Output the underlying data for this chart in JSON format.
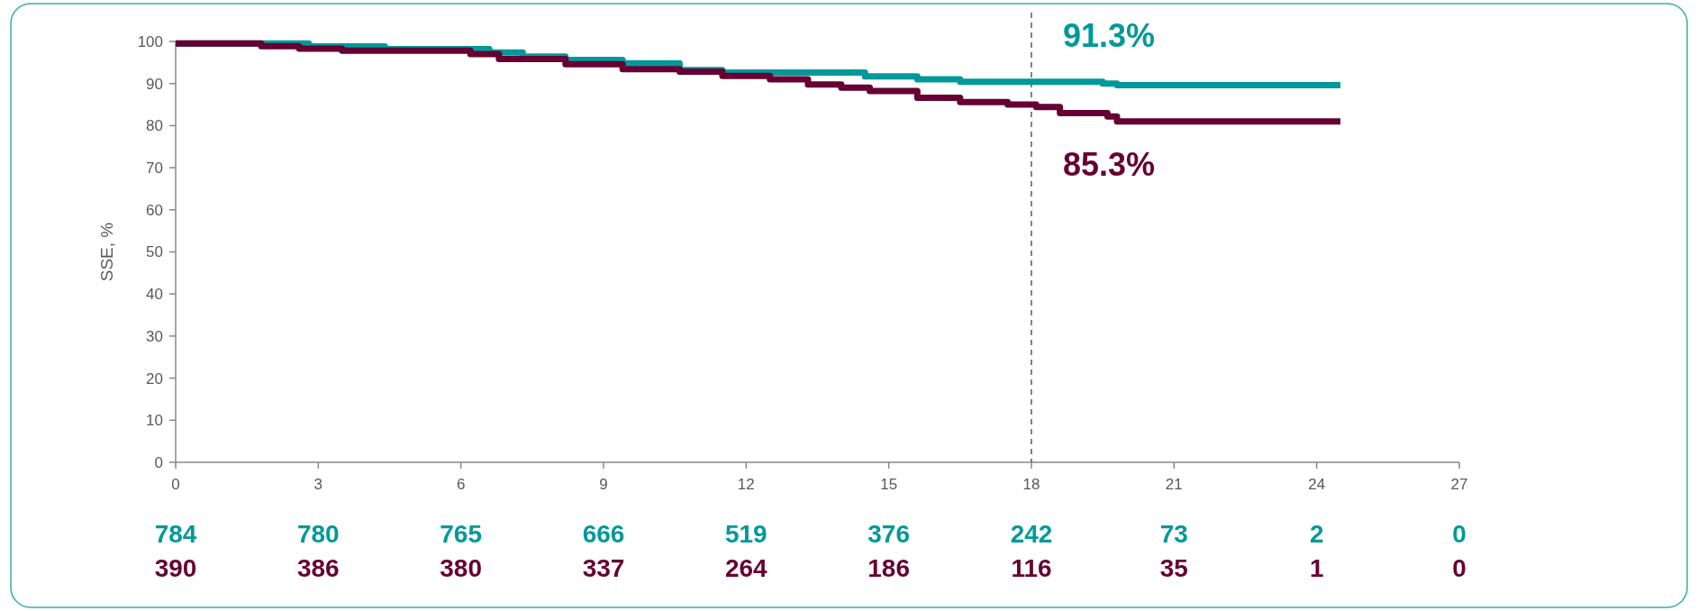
{
  "chart_data": {
    "type": "step",
    "ylabel": "SSE, %",
    "xlim": [
      0,
      27
    ],
    "xticks": [
      0,
      3,
      6,
      9,
      12,
      15,
      18,
      21,
      24,
      27
    ],
    "ylim": [
      0,
      100
    ],
    "yticks": [
      0,
      10,
      20,
      30,
      40,
      50,
      60,
      70,
      80,
      90,
      100
    ],
    "line_style": "solid",
    "series": [
      {
        "color": "#009999",
        "x": [
          0,
          2.8,
          4.4,
          6.6,
          7.3,
          8.2,
          9.4,
          10.6,
          11.5,
          14.5,
          15.6,
          16.5,
          19.5,
          19.8,
          24.5
        ],
        "values": [
          99.5,
          98.8,
          98.2,
          97.4,
          96.4,
          95.6,
          94.8,
          93.2,
          92.6,
          91.7,
          91.0,
          90.4,
          90.0,
          89.6,
          89.6
        ]
      },
      {
        "color": "#660033",
        "x": [
          0,
          1.8,
          2.6,
          3.5,
          6.2,
          6.8,
          8.2,
          9.4,
          10.6,
          11.5,
          12.5,
          13.3,
          14.0,
          14.6,
          15.6,
          16.5,
          17.5,
          18.1,
          18.6,
          19.6,
          19.8,
          24.5
        ],
        "values": [
          99.5,
          98.9,
          98.3,
          97.8,
          97.0,
          95.8,
          94.6,
          93.4,
          92.8,
          91.8,
          91.0,
          89.8,
          89.0,
          88.2,
          86.6,
          85.6,
          85.0,
          84.4,
          83.0,
          82.2,
          81.0,
          81.0
        ]
      }
    ],
    "ref_lines": [
      {
        "axis": "x",
        "value": 18,
        "color": "#595959",
        "line_style": "dashed"
      }
    ],
    "annotations": [
      {
        "text": "91.3%",
        "x": 18,
        "y": 91.3
      },
      {
        "text": "85.3%",
        "x": 18,
        "y": 85.3
      },
      "784",
      "780",
      "765",
      "666",
      "519",
      "376",
      "242",
      "73",
      "2",
      "0",
      "390",
      "386",
      "380",
      "337",
      "264",
      "186",
      "116",
      "35",
      "1",
      "0"
    ]
  }
}
